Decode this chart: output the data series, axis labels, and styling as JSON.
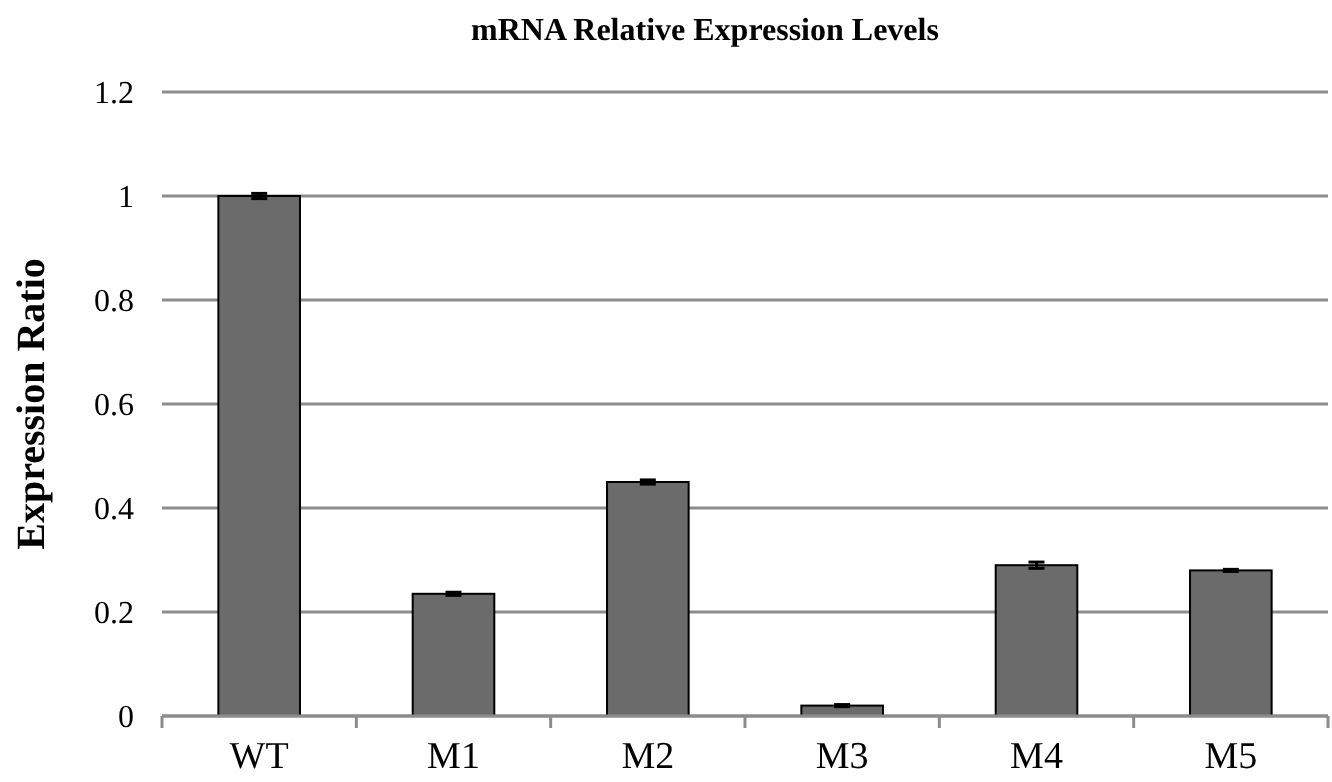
{
  "chart_data": {
    "type": "bar",
    "title": "mRNA Relative Expression Levels",
    "ylabel": "Expression Ratio",
    "categories": [
      "WT",
      "M1",
      "M2",
      "M3",
      "M4",
      "M5"
    ],
    "values": [
      1.0,
      0.235,
      0.45,
      0.02,
      0.29,
      0.28
    ],
    "errors": [
      0.005,
      0.003,
      0.004,
      0.002,
      0.006,
      0.002
    ],
    "color": "#6b6b6b",
    "ylim": [
      0,
      1.2
    ],
    "yticks": [
      0,
      0.2,
      0.4,
      0.6,
      0.8,
      1,
      1.2
    ],
    "grid": "y"
  }
}
